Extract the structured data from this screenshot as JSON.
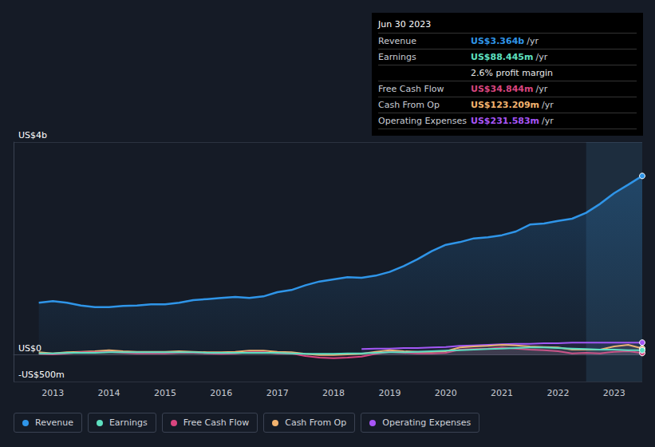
{
  "chart_data": {
    "type": "line",
    "x": [
      2012.75,
      2013,
      2013.25,
      2013.5,
      2013.75,
      2014,
      2014.25,
      2014.5,
      2014.75,
      2015,
      2015.25,
      2015.5,
      2015.75,
      2016,
      2016.25,
      2016.5,
      2016.75,
      2017,
      2017.25,
      2017.5,
      2017.75,
      2018,
      2018.25,
      2018.5,
      2018.75,
      2019,
      2019.25,
      2019.5,
      2019.75,
      2020,
      2020.25,
      2020.5,
      2020.75,
      2021,
      2021.25,
      2021.5,
      2021.75,
      2022,
      2022.25,
      2022.5,
      2022.75,
      2023,
      2023.25,
      2023.5
    ],
    "series": [
      {
        "name": "Revenue",
        "color": "#2f95e8",
        "values": [
          0.98,
          1.01,
          0.98,
          0.93,
          0.9,
          0.9,
          0.92,
          0.93,
          0.95,
          0.95,
          0.98,
          1.03,
          1.05,
          1.07,
          1.09,
          1.07,
          1.1,
          1.18,
          1.22,
          1.31,
          1.38,
          1.42,
          1.46,
          1.45,
          1.49,
          1.56,
          1.67,
          1.8,
          1.95,
          2.07,
          2.12,
          2.19,
          2.21,
          2.25,
          2.32,
          2.45,
          2.47,
          2.52,
          2.56,
          2.67,
          2.84,
          3.04,
          3.2,
          3.364
        ]
      },
      {
        "name": "Earnings",
        "color": "#5ee0c0",
        "values": [
          0.03,
          0.03,
          0.04,
          0.04,
          0.04,
          0.05,
          0.05,
          0.05,
          0.05,
          0.05,
          0.05,
          0.05,
          0.04,
          0.04,
          0.04,
          0.04,
          0.04,
          0.04,
          0.03,
          0.02,
          0.02,
          0.02,
          0.03,
          0.03,
          0.04,
          0.05,
          0.05,
          0.06,
          0.07,
          0.08,
          0.09,
          0.1,
          0.11,
          0.12,
          0.13,
          0.14,
          0.14,
          0.13,
          0.12,
          0.11,
          0.1,
          0.1,
          0.09,
          0.088
        ]
      },
      {
        "name": "Free Cash Flow",
        "color": "#d9457f",
        "values": [
          0.02,
          0.01,
          0.03,
          0.05,
          0.05,
          0.06,
          0.04,
          0.03,
          0.03,
          0.03,
          0.04,
          0.04,
          0.03,
          0.02,
          0.03,
          0.05,
          0.05,
          0.03,
          0.03,
          -0.02,
          -0.05,
          -0.06,
          -0.05,
          -0.03,
          0.02,
          0.06,
          0.04,
          0.03,
          0.03,
          0.04,
          0.1,
          0.11,
          0.12,
          0.14,
          0.12,
          0.1,
          0.09,
          0.07,
          0.03,
          0.04,
          0.03,
          0.06,
          0.07,
          0.035
        ]
      },
      {
        "name": "Cash From Op",
        "color": "#f2b36f",
        "values": [
          0.05,
          0.03,
          0.05,
          0.06,
          0.07,
          0.09,
          0.07,
          0.06,
          0.06,
          0.06,
          0.07,
          0.06,
          0.05,
          0.05,
          0.06,
          0.08,
          0.08,
          0.06,
          0.05,
          0.02,
          0.0,
          0.0,
          0.01,
          0.02,
          0.06,
          0.09,
          0.07,
          0.06,
          0.06,
          0.07,
          0.14,
          0.16,
          0.17,
          0.19,
          0.18,
          0.16,
          0.15,
          0.14,
          0.1,
          0.1,
          0.1,
          0.16,
          0.19,
          0.123
        ]
      },
      {
        "name": "Operating Expenses",
        "color": "#a855f7",
        "values": [
          null,
          null,
          null,
          null,
          null,
          null,
          null,
          null,
          null,
          null,
          null,
          null,
          null,
          null,
          null,
          null,
          null,
          null,
          null,
          null,
          null,
          null,
          null,
          0.11,
          0.12,
          0.12,
          0.13,
          0.13,
          0.14,
          0.15,
          0.17,
          0.18,
          0.19,
          0.2,
          0.21,
          0.21,
          0.22,
          0.22,
          0.23,
          0.23,
          0.23,
          0.23,
          0.23,
          0.232
        ]
      }
    ],
    "xlim": [
      2012.3,
      2023.5
    ],
    "xticks": [
      2013,
      2014,
      2015,
      2016,
      2017,
      2018,
      2019,
      2020,
      2021,
      2022,
      2023
    ],
    "ylim": [
      -0.5,
      4
    ],
    "yticks": [
      {
        "value": -0.5,
        "label": "-US$500m"
      },
      {
        "value": 0,
        "label": "US$0"
      },
      {
        "value": 4,
        "label": "US$4b"
      }
    ],
    "grid": true,
    "legend": "bottom",
    "highlight_x": [
      2022.5,
      2023.5
    ],
    "summary": {
      "title": "Jun 30 2023",
      "rows": [
        {
          "label": "Revenue",
          "value": "US$3.364b",
          "unit": "/yr"
        },
        {
          "label": "Earnings",
          "value": "US$88.445m",
          "unit": "/yr"
        },
        {
          "value": "2.6% profit margin"
        },
        {
          "label": "Free Cash Flow",
          "value": "US$34.844m",
          "unit": "/yr"
        },
        {
          "label": "Cash From Op",
          "value": "US$123.209m",
          "unit": "/yr"
        },
        {
          "label": "Operating Expenses",
          "value": "US$231.583m",
          "unit": "/yr"
        }
      ]
    }
  }
}
